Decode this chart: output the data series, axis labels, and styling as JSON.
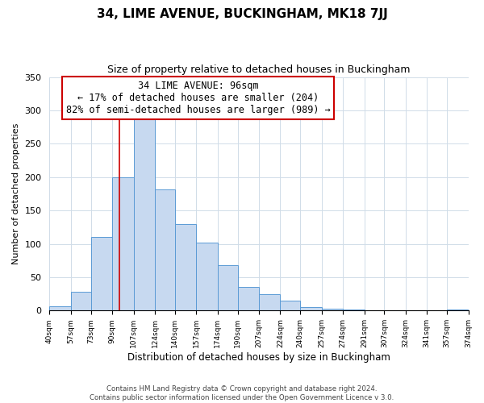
{
  "title": "34, LIME AVENUE, BUCKINGHAM, MK18 7JJ",
  "subtitle": "Size of property relative to detached houses in Buckingham",
  "xlabel": "Distribution of detached houses by size in Buckingham",
  "ylabel": "Number of detached properties",
  "bin_labels": [
    "40sqm",
    "57sqm",
    "73sqm",
    "90sqm",
    "107sqm",
    "124sqm",
    "140sqm",
    "157sqm",
    "174sqm",
    "190sqm",
    "207sqm",
    "224sqm",
    "240sqm",
    "257sqm",
    "274sqm",
    "291sqm",
    "307sqm",
    "324sqm",
    "341sqm",
    "357sqm",
    "374sqm"
  ],
  "bar_heights": [
    6,
    28,
    110,
    200,
    295,
    181,
    130,
    102,
    68,
    35,
    25,
    15,
    5,
    3,
    2,
    1,
    0,
    1,
    0,
    2
  ],
  "bar_color": "#c7d9f0",
  "bar_edge_color": "#5b9bd5",
  "bin_edges": [
    40,
    57,
    73,
    90,
    107,
    124,
    140,
    157,
    174,
    190,
    207,
    224,
    240,
    257,
    274,
    291,
    307,
    324,
    341,
    357,
    374
  ],
  "annotation_title": "34 LIME AVENUE: 96sqm",
  "annotation_line1": "← 17% of detached houses are smaller (204)",
  "annotation_line2": "82% of semi-detached houses are larger (989) →",
  "annotation_box_color": "#ffffff",
  "annotation_box_edge": "#cc0000",
  "red_line_color": "#cc0000",
  "red_line_x": 96,
  "ylim": [
    0,
    350
  ],
  "yticks": [
    0,
    50,
    100,
    150,
    200,
    250,
    300,
    350
  ],
  "footer1": "Contains HM Land Registry data © Crown copyright and database right 2024.",
  "footer2": "Contains public sector information licensed under the Open Government Licence v 3.0.",
  "background_color": "#ffffff",
  "grid_color": "#d0dce8"
}
